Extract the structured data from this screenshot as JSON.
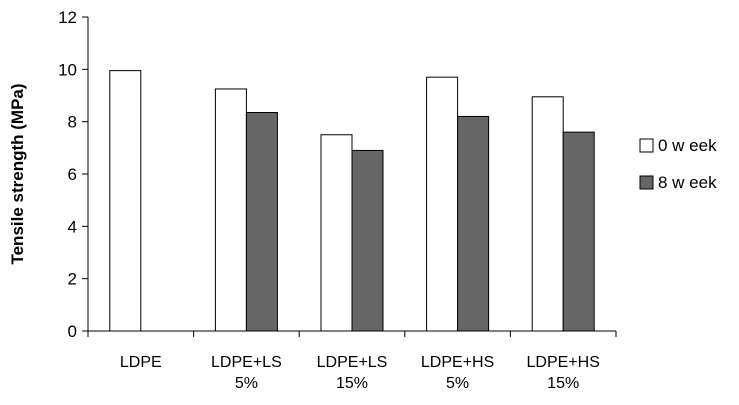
{
  "chart_data": {
    "type": "bar",
    "title": "",
    "xlabel": "",
    "ylabel": "Tensile strength (MPa)",
    "ylim": [
      0,
      12
    ],
    "yticks": [
      0,
      2,
      4,
      6,
      8,
      10,
      12
    ],
    "grid": false,
    "legend_position": "right",
    "categories": [
      [
        "LDPE"
      ],
      [
        "LDPE+LS",
        "5%"
      ],
      [
        "LDPE+LS",
        "15%"
      ],
      [
        "LDPE+HS",
        "5%"
      ],
      [
        "LDPE+HS",
        "15%"
      ]
    ],
    "series": [
      {
        "name": "0 w eek",
        "color": "#ffffff",
        "values": [
          9.95,
          9.25,
          7.5,
          9.7,
          8.95
        ]
      },
      {
        "name": "8 w eek",
        "color": "#666666",
        "values": [
          null,
          8.35,
          6.9,
          8.2,
          7.6
        ]
      }
    ]
  }
}
